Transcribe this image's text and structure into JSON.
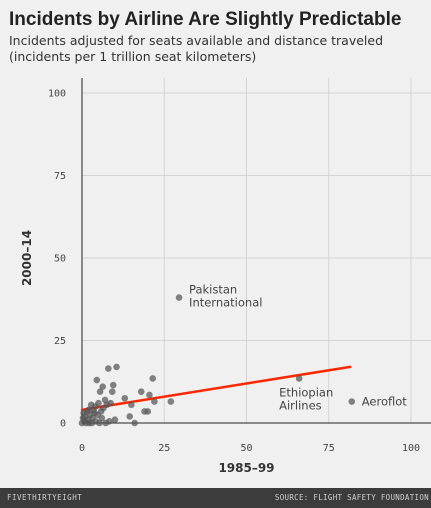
{
  "chart_data": {
    "type": "scatter",
    "title": "Incidents by Airline Are Slightly Predictable",
    "subtitle_lines": [
      "Incidents adjusted for seats available and distance traveled",
      "(incidents per 1 trillion seat kilometers)"
    ],
    "xlabel": "1985–99",
    "ylabel": "2000–14",
    "xlim": [
      0,
      100
    ],
    "ylim": [
      0,
      100
    ],
    "xticks": [
      0,
      25,
      50,
      75,
      100
    ],
    "yticks": [
      0,
      25,
      50,
      75,
      100
    ],
    "grid": true,
    "point_color": "#555555",
    "trend_color": "#ff2700",
    "points": [
      {
        "x": 0.0,
        "y": 0.0
      },
      {
        "x": 0.3,
        "y": 1.5
      },
      {
        "x": 0.5,
        "y": 3.0
      },
      {
        "x": 0.8,
        "y": 0.5
      },
      {
        "x": 1.0,
        "y": 2.0
      },
      {
        "x": 1.2,
        "y": 0.0
      },
      {
        "x": 1.5,
        "y": 3.5
      },
      {
        "x": 1.8,
        "y": 1.0
      },
      {
        "x": 2.0,
        "y": 4.0
      },
      {
        "x": 2.2,
        "y": 0.0
      },
      {
        "x": 2.5,
        "y": 2.5
      },
      {
        "x": 2.8,
        "y": 5.5
      },
      {
        "x": 3.0,
        "y": 0.0
      },
      {
        "x": 3.2,
        "y": 1.5
      },
      {
        "x": 3.5,
        "y": 4.0
      },
      {
        "x": 3.8,
        "y": 3.0
      },
      {
        "x": 4.0,
        "y": 5.0
      },
      {
        "x": 4.2,
        "y": 0.5
      },
      {
        "x": 4.5,
        "y": 13.0
      },
      {
        "x": 4.7,
        "y": 2.5
      },
      {
        "x": 5.0,
        "y": 6.0
      },
      {
        "x": 5.3,
        "y": 0.0
      },
      {
        "x": 5.5,
        "y": 9.5
      },
      {
        "x": 5.8,
        "y": 3.5
      },
      {
        "x": 6.0,
        "y": 1.5
      },
      {
        "x": 6.3,
        "y": 11.0
      },
      {
        "x": 6.5,
        "y": 4.5
      },
      {
        "x": 7.0,
        "y": 7.0
      },
      {
        "x": 7.2,
        "y": 0.0
      },
      {
        "x": 7.5,
        "y": 5.5
      },
      {
        "x": 8.0,
        "y": 16.5
      },
      {
        "x": 8.3,
        "y": 0.5
      },
      {
        "x": 8.7,
        "y": 6.0
      },
      {
        "x": 9.2,
        "y": 9.5
      },
      {
        "x": 9.5,
        "y": 11.5
      },
      {
        "x": 10.0,
        "y": 1.0
      },
      {
        "x": 10.5,
        "y": 17.0
      },
      {
        "x": 13.0,
        "y": 7.5
      },
      {
        "x": 14.5,
        "y": 2.0
      },
      {
        "x": 15.0,
        "y": 5.5
      },
      {
        "x": 16.0,
        "y": 0.0
      },
      {
        "x": 18.0,
        "y": 9.5
      },
      {
        "x": 19.0,
        "y": 3.5
      },
      {
        "x": 20.0,
        "y": 3.5
      },
      {
        "x": 20.5,
        "y": 8.5
      },
      {
        "x": 21.5,
        "y": 13.5
      },
      {
        "x": 22.0,
        "y": 6.5
      },
      {
        "x": 27.0,
        "y": 6.5
      },
      {
        "x": 29.5,
        "y": 38.0
      },
      {
        "x": 66.0,
        "y": 13.5
      },
      {
        "x": 82.0,
        "y": 6.5
      }
    ],
    "trend_line": {
      "x": [
        0,
        81.5
      ],
      "y": [
        4.0,
        17.0
      ]
    },
    "annotations": [
      {
        "label_lines": [
          "Pakistan",
          "International"
        ],
        "x": 29.5,
        "y": 38.0,
        "placement": "right"
      },
      {
        "label_lines": [
          "Ethiopian",
          "Airlines"
        ],
        "x": 66.0,
        "y": 13.5,
        "placement": "below-left"
      },
      {
        "label_lines": [
          "Aeroflot"
        ],
        "x": 82.0,
        "y": 6.5,
        "placement": "right"
      }
    ]
  },
  "footer": {
    "brand": "FIVETHIRTYEIGHT",
    "source": "SOURCE: FLIGHT SAFETY FOUNDATION"
  }
}
